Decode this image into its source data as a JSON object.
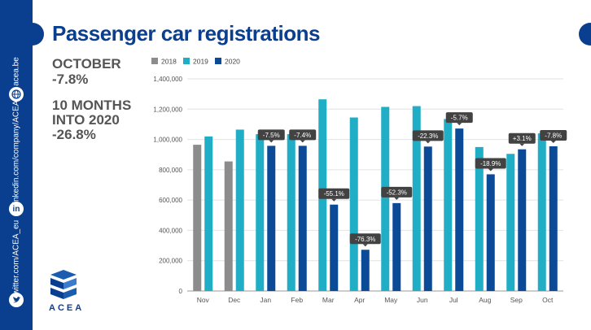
{
  "title": "Passenger car registrations",
  "stats": {
    "october_label": "OCTOBER",
    "october_value": "-7.8%",
    "ytd_label_line1": "10 MONTHS",
    "ytd_label_line2": "INTO 2020",
    "ytd_value": "-26.8%"
  },
  "sidebar": {
    "website": "acea.be",
    "linkedin": "linkedin.com/company/ACEA",
    "twitter": "twitter.com/ACEA_eu"
  },
  "logo": {
    "text": "ACEA"
  },
  "colors": {
    "brand": "#0a3f8f",
    "y2018": "#8c8c8c",
    "y2019": "#20aec6",
    "y2020": "#0a4a96"
  },
  "chart_data": {
    "type": "bar",
    "categories": [
      "Nov",
      "Dec",
      "Jan",
      "Feb",
      "Mar",
      "Apr",
      "May",
      "Jun",
      "Jul",
      "Aug",
      "Sep",
      "Oct"
    ],
    "series": [
      {
        "name": "2018",
        "values": [
          965000,
          855000,
          null,
          null,
          null,
          null,
          null,
          null,
          null,
          null,
          null,
          null
        ]
      },
      {
        "name": "2019",
        "values": [
          1020000,
          1065000,
          1035000,
          1035000,
          1265000,
          1145000,
          1215000,
          1220000,
          1135000,
          950000,
          905000,
          1040000
        ]
      },
      {
        "name": "2020",
        "values": [
          null,
          null,
          958000,
          958000,
          570000,
          272000,
          580000,
          953000,
          1072000,
          770000,
          935000,
          955000
        ]
      }
    ],
    "annotations": [
      "-7.5%",
      "-7.4%",
      "-55.1%",
      "-76.3%",
      "-52.3%",
      "-22.3%",
      "-5.7%",
      "-18.9%",
      "+3.1%",
      "-7.8%"
    ],
    "annotation_positions": [
      2,
      3,
      4,
      5,
      6,
      7,
      8,
      9,
      10,
      11
    ],
    "ylim": [
      0,
      1400000
    ],
    "yticks": [
      "0",
      "200,000",
      "400,000",
      "600,000",
      "800,000",
      "1,000,000",
      "1,200,000",
      "1,400,000"
    ],
    "legend": [
      "2018",
      "2019",
      "2020"
    ],
    "legend_position": "top-left",
    "grid": true
  }
}
